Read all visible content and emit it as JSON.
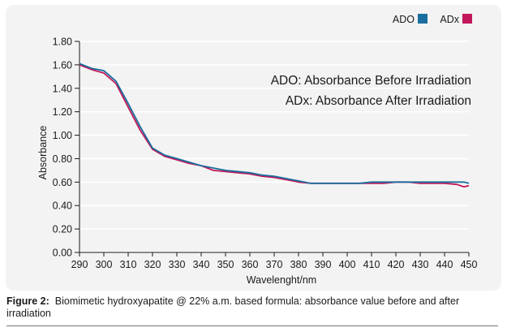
{
  "caption": {
    "label": "Figure 2:",
    "text": "Biomimetic hydroxyapatite @ 22% a.m. based formula: absorbance value before and after irradiation"
  },
  "chart_data": {
    "type": "line",
    "xlabel": "Wavelenght/nm",
    "ylabel": "Absorbance",
    "xlim": [
      290,
      450
    ],
    "ylim": [
      0,
      1.8
    ],
    "x_ticks": [
      290,
      300,
      310,
      320,
      330,
      340,
      350,
      360,
      370,
      380,
      390,
      400,
      410,
      420,
      430,
      440,
      450
    ],
    "y_ticks": [
      "0.00",
      "0.20",
      "0.40",
      "0.60",
      "0.80",
      "1.00",
      "1.20",
      "1.40",
      "1.60",
      "1.80"
    ],
    "legend_position": "top-right",
    "annotations": [
      "ADO: Absorbance Before Irradiation",
      "ADx: Absorbance After Irradiation"
    ],
    "x": [
      290,
      295,
      300,
      305,
      310,
      315,
      320,
      325,
      330,
      335,
      340,
      345,
      350,
      355,
      360,
      365,
      370,
      375,
      380,
      385,
      390,
      395,
      400,
      405,
      410,
      415,
      420,
      425,
      430,
      435,
      440,
      445,
      448,
      450
    ],
    "series": [
      {
        "name": "ADO",
        "color": "#1a6e9e",
        "values": [
          1.61,
          1.57,
          1.55,
          1.46,
          1.27,
          1.07,
          0.89,
          0.83,
          0.8,
          0.77,
          0.74,
          0.72,
          0.7,
          0.69,
          0.68,
          0.66,
          0.65,
          0.63,
          0.61,
          0.59,
          0.59,
          0.59,
          0.59,
          0.59,
          0.6,
          0.6,
          0.6,
          0.6,
          0.6,
          0.6,
          0.6,
          0.6,
          0.6,
          0.59
        ]
      },
      {
        "name": "ADx",
        "color": "#c2185b",
        "values": [
          1.6,
          1.56,
          1.53,
          1.44,
          1.24,
          1.04,
          0.88,
          0.82,
          0.79,
          0.76,
          0.74,
          0.7,
          0.69,
          0.68,
          0.67,
          0.65,
          0.64,
          0.62,
          0.6,
          0.59,
          0.59,
          0.59,
          0.59,
          0.59,
          0.59,
          0.59,
          0.6,
          0.6,
          0.59,
          0.59,
          0.59,
          0.58,
          0.56,
          0.57
        ]
      }
    ]
  }
}
